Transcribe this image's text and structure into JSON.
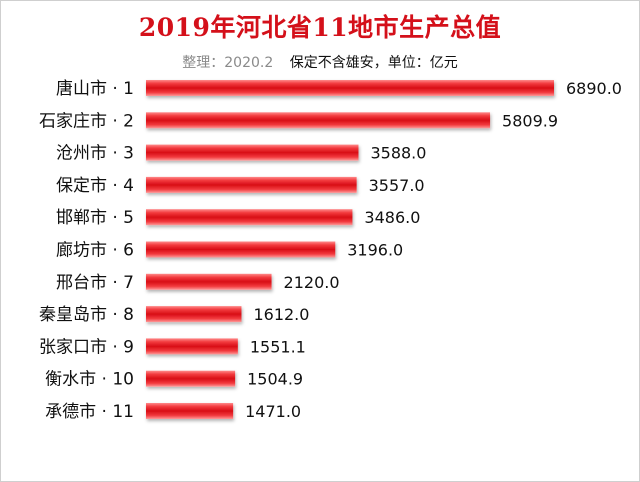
{
  "chart_data": {
    "type": "bar",
    "orientation": "horizontal",
    "title": "2019年河北省11地市生产总值",
    "subtitle_note": "整理：2020.2",
    "subtitle_unit": "保定不含雄安，单位：亿元",
    "categories": [
      "唐山市 · 1",
      "石家庄市 · 2",
      "沧州市 · 3",
      "保定市 · 4",
      "邯郸市 · 5",
      "廊坊市 · 6",
      "邢台市 · 7",
      "秦皇岛市 · 8",
      "张家口市 · 9",
      "衡水市 · 10",
      "承德市 · 11"
    ],
    "values": [
      6890.0,
      5809.9,
      3588.0,
      3557.0,
      3486.0,
      3196.0,
      2120.0,
      1612.0,
      1551.1,
      1504.9,
      1471.0
    ],
    "value_labels": [
      "6890.0",
      "5809.9",
      "3588.0",
      "3557.0",
      "3486.0",
      "3196.0",
      "2120.0",
      "1612.0",
      "1551.1",
      "1504.9",
      "1471.0"
    ],
    "xlim": [
      0,
      6890
    ],
    "grid": false,
    "bar_color": "#e8161c"
  }
}
